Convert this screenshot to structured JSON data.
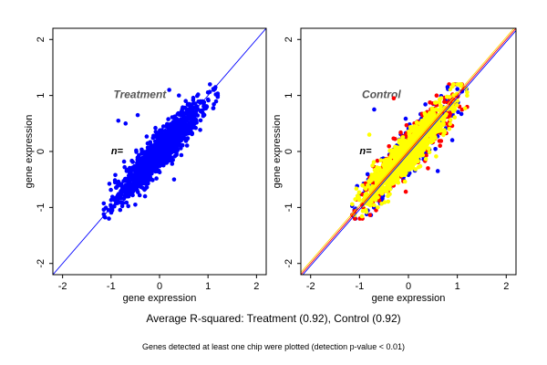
{
  "chart_data": [
    {
      "type": "scatter",
      "title": "Treatment",
      "n_label": "n=",
      "xlabel": "gene expression",
      "ylabel": "gene expression",
      "xlim": [
        -2.2,
        2.2
      ],
      "ylim": [
        -2.2,
        2.2
      ],
      "xticks": [
        "-2",
        "-1",
        "0",
        "1",
        "2"
      ],
      "yticks": [
        "-2",
        "-1",
        "0",
        "1",
        "2"
      ],
      "grid": false,
      "point_cloud": {
        "x_range": [
          -1.15,
          1.2
        ],
        "y_range": [
          -1.2,
          1.2
        ],
        "correlation": 0.92,
        "outliers": [
          [
            -0.85,
            0.55
          ],
          [
            -0.7,
            0.5
          ],
          [
            -0.45,
            0.65
          ],
          [
            0.4,
            1.0
          ],
          [
            0.2,
            1.1
          ],
          [
            0.3,
            -0.5
          ],
          [
            -0.5,
            -0.95
          ]
        ]
      },
      "series": [
        {
          "name": "",
          "color": "#0000ff"
        }
      ],
      "reference_lines": [
        {
          "type": "identity",
          "color": "#0000ff"
        }
      ]
    },
    {
      "type": "scatter",
      "title": "Control",
      "n_label": "n=",
      "xlabel": "gene expression",
      "ylabel": "gene expression",
      "xlim": [
        -2.2,
        2.2
      ],
      "ylim": [
        -2.2,
        2.2
      ],
      "xticks": [
        "-2",
        "-1",
        "0",
        "1",
        "2"
      ],
      "yticks": [
        "-2",
        "-1",
        "0",
        "1",
        "2"
      ],
      "grid": false,
      "point_cloud": {
        "x_range": [
          -1.15,
          1.2
        ],
        "y_range": [
          -1.2,
          1.2
        ],
        "correlation": 0.92,
        "outliers": [
          [
            -0.7,
            0.75
          ],
          [
            -0.3,
            0.95
          ],
          [
            -0.85,
            -0.9
          ],
          [
            0.6,
            -0.35
          ],
          [
            0.4,
            -0.3
          ],
          [
            -0.8,
            0.3
          ],
          [
            0.8,
            1.15
          ],
          [
            -0.95,
            -0.95
          ]
        ]
      },
      "series": [
        {
          "name": "",
          "color": "#0000ff"
        },
        {
          "name": "",
          "color": "#ff0000"
        },
        {
          "name": "",
          "color": "#ffff00"
        }
      ],
      "reference_lines": [
        {
          "type": "identity",
          "color": "#0000ff"
        },
        {
          "type": "identity",
          "color": "#ff0000"
        },
        {
          "type": "identity",
          "color": "#ffd700"
        }
      ]
    }
  ],
  "footer": {
    "summary": "Average R-squared: Treatment (0.92), Control (0.92)",
    "note": "Genes detected at least one chip were plotted (detection p-value < 0.01)"
  }
}
